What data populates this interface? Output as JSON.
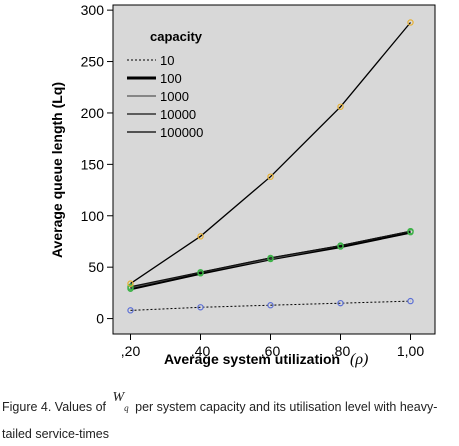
{
  "chart_data": {
    "type": "line",
    "xlabel": "Average system utilization",
    "xlabel_symbol": "(ρ)",
    "ylabel": "Average queue length (Lq)",
    "x": [
      0.2,
      0.4,
      0.6,
      0.8,
      1.0
    ],
    "x_tick_labels": [
      ",20",
      ",40",
      ",60",
      ",80",
      "1,00"
    ],
    "xlim": [
      0.15,
      1.07
    ],
    "ylim": [
      -15,
      305
    ],
    "y_ticks": [
      0,
      50,
      100,
      150,
      200,
      250,
      300
    ],
    "y_tick_labels": [
      "0",
      "50",
      "100",
      "150",
      "200",
      "250",
      "300"
    ],
    "grid": false,
    "legend_title": "capacity",
    "legend_position": "top-left",
    "series": [
      {
        "name": "10",
        "values": [
          8,
          11,
          13,
          15,
          17
        ],
        "style": "dotted",
        "color": "#000000",
        "marker_color": "#5b6fd6"
      },
      {
        "name": "100",
        "values": [
          29,
          44,
          58,
          70,
          84
        ],
        "style": "thick",
        "color": "#000000",
        "marker_color": "#3fb24a"
      },
      {
        "name": "1000",
        "values": [
          30,
          45,
          58,
          71,
          85
        ],
        "style": "solid",
        "color": "#555555",
        "marker_color": "#3fb24a"
      },
      {
        "name": "10000",
        "values": [
          31,
          45,
          59,
          71,
          85
        ],
        "style": "solid",
        "color": "#111111",
        "marker_color": "#3fb24a"
      },
      {
        "name": "100000",
        "values": [
          34,
          80,
          138,
          206,
          288
        ],
        "style": "solid",
        "color": "#000000",
        "marker_color": "#e8b030"
      }
    ]
  },
  "caption": {
    "prefix": "Figure 4. Values of",
    "symbol": "W",
    "symbol_sub": "q",
    "suffix": "per system capacity and its utilisation level with heavy-tailed service-times"
  }
}
